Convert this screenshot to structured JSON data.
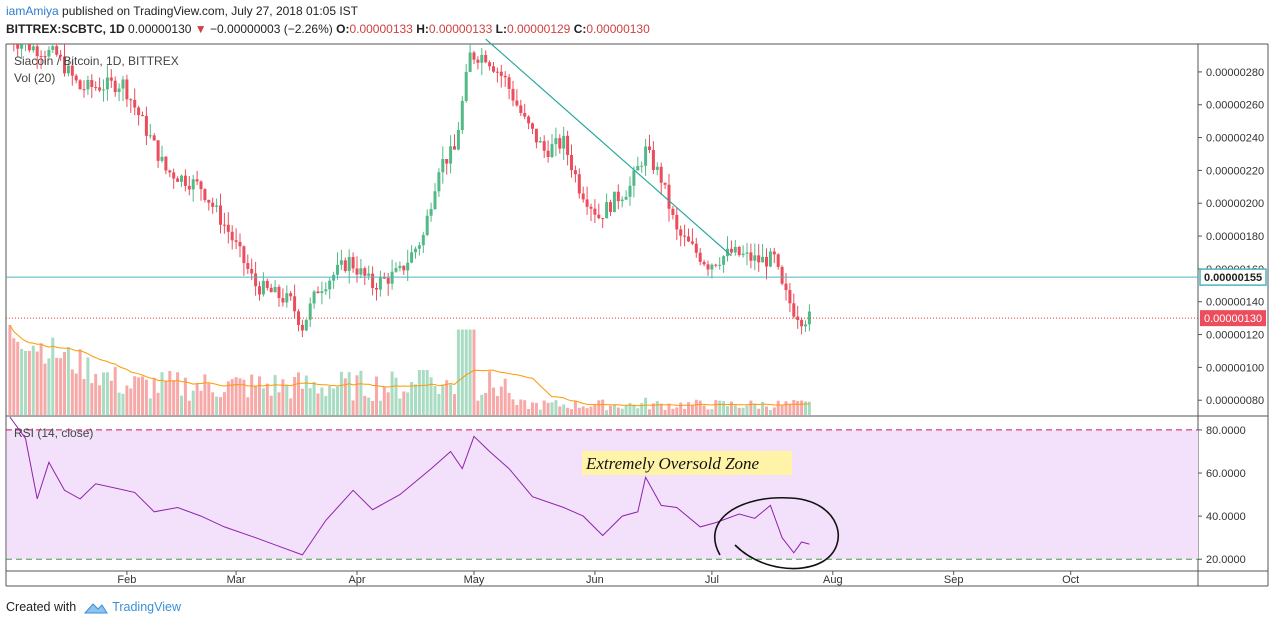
{
  "header": {
    "user": "iamAmiya",
    "published_text": "published on TradingView.com, July 27, 2018 01:05 IST",
    "symbol": "BITTREX:SCBTC, 1D",
    "last": "0.00000130",
    "change": "−0.00000003 (−2.26%)",
    "o_label": "O:",
    "o": "0.00000133",
    "h_label": "H:",
    "h": "0.00000133",
    "l_label": "L:",
    "l": "0.00000129",
    "c_label": "C:",
    "c": "0.00000130"
  },
  "colors": {
    "up": "#53b987",
    "down": "#eb4d5c",
    "up_vol": "#a9dcc3",
    "down_vol": "#f7a9a7",
    "trendline": "#26a69a",
    "hline": "#4fb3bf",
    "rsi_line": "#8e24aa",
    "rsi_fill": "#f3e1fb",
    "vol_ma": "#ff9800",
    "price_dotted": "#e53935"
  },
  "chart_data": [
    {
      "type": "candlestick",
      "title": "Siacoin / Bitcoin, 1D, BITTREX",
      "indicator_label": "Vol (20)",
      "yaxis_ticks": [
        "0.00000280",
        "0.00000260",
        "0.00000240",
        "0.00000220",
        "0.00000200",
        "0.00000180",
        "0.00000160",
        "0.00000140",
        "0.00000120",
        "0.00000100",
        "0.00000080"
      ],
      "ylim": [
        7.1e-07,
        2.97e-06
      ],
      "x_labels": [
        "Feb",
        "Mar",
        "Apr",
        "May",
        "Jun",
        "Jul",
        "Aug",
        "Sep",
        "Oct"
      ],
      "x_label_dates": [
        "2018-02-01",
        "2018-03-01",
        "2018-04-01",
        "2018-05-01",
        "2018-06-01",
        "2018-07-01",
        "2018-08-01",
        "2018-09-01",
        "2018-10-01"
      ],
      "price_key_points": [
        {
          "date": "2018-01-02",
          "close": 3e-06
        },
        {
          "date": "2018-01-14",
          "close": 2.9e-06
        },
        {
          "date": "2018-01-20",
          "close": 2.7e-06
        },
        {
          "date": "2018-01-31",
          "close": 2.73e-06
        },
        {
          "date": "2018-02-08",
          "close": 2.35e-06
        },
        {
          "date": "2018-02-11",
          "close": 2.2e-06
        },
        {
          "date": "2018-02-20",
          "close": 2.1e-06
        },
        {
          "date": "2018-02-27",
          "close": 1.83e-06
        },
        {
          "date": "2018-03-06",
          "close": 1.5e-06
        },
        {
          "date": "2018-03-15",
          "close": 1.4e-06
        },
        {
          "date": "2018-03-18",
          "close": 1.25e-06
        },
        {
          "date": "2018-03-22",
          "close": 1.48e-06
        },
        {
          "date": "2018-03-30",
          "close": 1.65e-06
        },
        {
          "date": "2018-04-05",
          "close": 1.5e-06
        },
        {
          "date": "2018-04-12",
          "close": 1.58e-06
        },
        {
          "date": "2018-04-18",
          "close": 1.8e-06
        },
        {
          "date": "2018-04-22",
          "close": 2.23e-06
        },
        {
          "date": "2018-04-26",
          "close": 2.32e-06
        },
        {
          "date": "2018-04-30",
          "close": 2.9e-06
        },
        {
          "date": "2018-05-04",
          "close": 2.9e-06
        },
        {
          "date": "2018-05-09",
          "close": 2.75e-06
        },
        {
          "date": "2018-05-14",
          "close": 2.5e-06
        },
        {
          "date": "2018-05-19",
          "close": 2.32e-06
        },
        {
          "date": "2018-05-24",
          "close": 2.37e-06
        },
        {
          "date": "2018-05-28",
          "close": 2.1e-06
        },
        {
          "date": "2018-06-02",
          "close": 1.92e-06
        },
        {
          "date": "2018-06-06",
          "close": 2.02e-06
        },
        {
          "date": "2018-06-10",
          "close": 2.1e-06
        },
        {
          "date": "2018-06-14",
          "close": 2.32e-06
        },
        {
          "date": "2018-06-18",
          "close": 2.15e-06
        },
        {
          "date": "2018-06-22",
          "close": 1.82e-06
        },
        {
          "date": "2018-06-30",
          "close": 1.63e-06
        },
        {
          "date": "2018-07-06",
          "close": 1.7e-06
        },
        {
          "date": "2018-07-13",
          "close": 1.65e-06
        },
        {
          "date": "2018-07-17",
          "close": 1.66e-06
        },
        {
          "date": "2018-07-19",
          "close": 1.48e-06
        },
        {
          "date": "2018-07-22",
          "close": 1.35e-06
        },
        {
          "date": "2018-07-24",
          "close": 1.3e-06
        },
        {
          "date": "2018-07-26",
          "close": 1.3e-06
        }
      ],
      "volume_ma_label": "",
      "hline": {
        "value": 1.55e-06,
        "label": "0.00000155"
      },
      "last_price": {
        "value": 1.3e-06,
        "label": "0.00000130"
      },
      "trendline": [
        {
          "date": "2018-05-04",
          "value": 3e-06
        },
        {
          "date": "2018-07-06",
          "value": 1.68e-06
        }
      ]
    },
    {
      "type": "line",
      "title": "RSI (14, close)",
      "yaxis_ticks": [
        "80.0000",
        "60.0000",
        "40.0000",
        "20.0000"
      ],
      "ylim": [
        15,
        86
      ],
      "bands": [
        80,
        20
      ],
      "annotation": "Extremely Oversold Zone",
      "points": [
        {
          "date": "2018-01-02",
          "value": 86
        },
        {
          "date": "2018-01-06",
          "value": 76
        },
        {
          "date": "2018-01-09",
          "value": 48
        },
        {
          "date": "2018-01-12",
          "value": 65
        },
        {
          "date": "2018-01-16",
          "value": 52
        },
        {
          "date": "2018-01-20",
          "value": 48
        },
        {
          "date": "2018-01-24",
          "value": 55
        },
        {
          "date": "2018-02-03",
          "value": 51
        },
        {
          "date": "2018-02-08",
          "value": 42
        },
        {
          "date": "2018-02-14",
          "value": 44
        },
        {
          "date": "2018-02-20",
          "value": 40
        },
        {
          "date": "2018-02-26",
          "value": 35
        },
        {
          "date": "2018-03-06",
          "value": 30
        },
        {
          "date": "2018-03-12",
          "value": 26
        },
        {
          "date": "2018-03-18",
          "value": 22
        },
        {
          "date": "2018-03-24",
          "value": 38
        },
        {
          "date": "2018-03-31",
          "value": 52
        },
        {
          "date": "2018-04-05",
          "value": 43
        },
        {
          "date": "2018-04-12",
          "value": 50
        },
        {
          "date": "2018-04-20",
          "value": 62
        },
        {
          "date": "2018-04-25",
          "value": 70
        },
        {
          "date": "2018-04-28",
          "value": 62
        },
        {
          "date": "2018-05-01",
          "value": 77
        },
        {
          "date": "2018-05-05",
          "value": 70
        },
        {
          "date": "2018-05-10",
          "value": 62
        },
        {
          "date": "2018-05-16",
          "value": 49
        },
        {
          "date": "2018-05-24",
          "value": 44
        },
        {
          "date": "2018-05-29",
          "value": 40
        },
        {
          "date": "2018-06-03",
          "value": 31
        },
        {
          "date": "2018-06-08",
          "value": 40
        },
        {
          "date": "2018-06-12",
          "value": 42
        },
        {
          "date": "2018-06-14",
          "value": 58
        },
        {
          "date": "2018-06-18",
          "value": 45
        },
        {
          "date": "2018-06-22",
          "value": 44
        },
        {
          "date": "2018-06-28",
          "value": 35
        },
        {
          "date": "2018-07-02",
          "value": 37
        },
        {
          "date": "2018-07-08",
          "value": 41
        },
        {
          "date": "2018-07-12",
          "value": 39
        },
        {
          "date": "2018-07-16",
          "value": 45
        },
        {
          "date": "2018-07-19",
          "value": 30
        },
        {
          "date": "2018-07-22",
          "value": 23
        },
        {
          "date": "2018-07-24",
          "value": 28
        },
        {
          "date": "2018-07-26",
          "value": 27
        }
      ]
    }
  ],
  "footer": {
    "created_with": "Created with",
    "brand": "TradingView"
  }
}
